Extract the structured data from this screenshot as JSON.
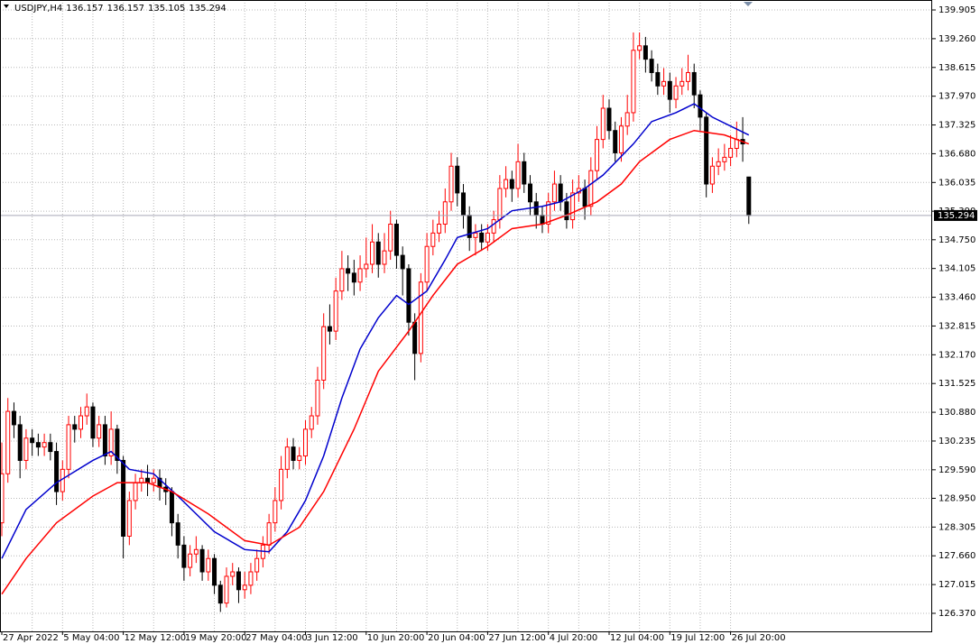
{
  "chart_data": {
    "type": "candlestick",
    "title": "USDJPY,H4",
    "categories": [
      "27 Apr 2022",
      null,
      null,
      null,
      null,
      null,
      null,
      null,
      null,
      null,
      "5 May 04:00",
      null,
      null,
      null,
      null,
      null,
      null,
      null,
      null,
      null,
      "12 May 12:00",
      null,
      null,
      null,
      null,
      null,
      null,
      null,
      null,
      null,
      "19 May 20:00",
      null,
      null,
      null,
      null,
      null,
      null,
      null,
      null,
      null,
      "27 May 04:00",
      null,
      null,
      null,
      null,
      null,
      null,
      null,
      null,
      null,
      "3 Jun 12:00",
      null,
      null,
      null,
      null,
      null,
      null,
      null,
      null,
      null,
      "10 Jun 20:00",
      null,
      null,
      null,
      null,
      null,
      null,
      null,
      null,
      null,
      "20 Jun 04:00",
      null,
      null,
      null,
      null,
      null,
      null,
      null,
      null,
      null,
      "27 Jun 12:00",
      null,
      null,
      null,
      null,
      null,
      null,
      null,
      null,
      null,
      "4 Jul 20:00",
      null,
      null,
      null,
      null,
      null,
      null,
      null,
      null,
      null,
      "12 Jul 04:00",
      null,
      null,
      null,
      null,
      null,
      null,
      null,
      null,
      null,
      "19 Jul 12:00",
      null,
      null,
      null,
      null,
      null,
      null,
      null,
      null,
      null,
      "26 Jul 20:00",
      null,
      null,
      null
    ],
    "candles": {
      "up_color": "#ff0000",
      "down_color": "#000000",
      "open": [
        128.4,
        129.5,
        130.9,
        130.6,
        129.8,
        130.3,
        130.2,
        130.1,
        130.2,
        130.0,
        129.1,
        129.6,
        130.6,
        130.5,
        130.8,
        131.0,
        130.3,
        130.6,
        129.9,
        130.5,
        129.8,
        128.1,
        128.9,
        129.3,
        129.4,
        129.3,
        129.4,
        129.2,
        129.1,
        128.4,
        127.9,
        127.4,
        127.7,
        127.8,
        127.3,
        127.6,
        127.0,
        126.6,
        127.2,
        127.3,
        126.9,
        127.0,
        127.3,
        127.6,
        127.9,
        128.4,
        128.9,
        129.6,
        130.1,
        129.8,
        129.9,
        130.5,
        130.8,
        131.6,
        132.8,
        132.7,
        133.6,
        134.1,
        134.0,
        133.8,
        134.1,
        134.2,
        134.7,
        134.2,
        134.5,
        135.1,
        134.4,
        134.1,
        132.9,
        132.2,
        133.8,
        134.6,
        134.9,
        135.1,
        135.6,
        136.4,
        135.8,
        135.3,
        134.8,
        134.9,
        134.7,
        134.9,
        135.2,
        135.9,
        136.1,
        135.9,
        136.5,
        136.0,
        135.6,
        135.3,
        135.1,
        135.6,
        136.0,
        135.6,
        135.2,
        135.8,
        135.9,
        135.5,
        136.3,
        137.0,
        137.7,
        137.2,
        136.7,
        137.3,
        137.6,
        139.0,
        139.1,
        138.8,
        138.5,
        138.2,
        138.3,
        137.9,
        138.2,
        138.3,
        138.5,
        138.0,
        137.5,
        136.0,
        136.4,
        136.5,
        136.6,
        136.8,
        137.0,
        136.157
      ],
      "high": [
        130.2,
        131.2,
        131.1,
        130.8,
        130.5,
        130.5,
        130.4,
        130.4,
        130.4,
        130.2,
        129.8,
        130.8,
        130.8,
        131.0,
        131.3,
        131.1,
        130.8,
        130.8,
        130.9,
        130.6,
        129.9,
        129.1,
        129.5,
        129.6,
        129.7,
        129.6,
        129.6,
        129.4,
        129.2,
        128.6,
        128.1,
        127.9,
        128.1,
        127.9,
        127.8,
        127.7,
        127.1,
        127.4,
        127.5,
        127.4,
        127.3,
        127.5,
        127.8,
        128.1,
        128.6,
        129.2,
        129.9,
        130.3,
        130.3,
        130.1,
        130.7,
        131.0,
        131.9,
        133.1,
        133.3,
        133.9,
        134.5,
        134.4,
        134.3,
        134.4,
        134.8,
        135.1,
        134.9,
        134.9,
        135.4,
        135.2,
        134.6,
        134.2,
        133.1,
        134.0,
        134.9,
        135.2,
        135.4,
        135.9,
        136.7,
        136.6,
        136.0,
        135.5,
        135.1,
        135.1,
        135.1,
        135.4,
        136.2,
        136.4,
        136.3,
        136.9,
        136.7,
        136.2,
        135.8,
        135.5,
        135.8,
        136.3,
        136.2,
        135.8,
        136.1,
        136.2,
        136.1,
        136.6,
        137.3,
        138.0,
        137.9,
        137.4,
        137.5,
        138.0,
        139.4,
        139.4,
        139.3,
        139.0,
        138.7,
        138.6,
        138.5,
        138.4,
        138.6,
        138.9,
        138.7,
        138.1,
        137.6,
        136.6,
        136.8,
        136.9,
        137.1,
        137.4,
        137.5,
        136.157
      ],
      "low": [
        128.1,
        129.3,
        130.3,
        129.4,
        129.6,
        129.9,
        129.9,
        129.9,
        129.8,
        128.8,
        128.9,
        129.4,
        130.2,
        130.3,
        130.6,
        130.1,
        130.1,
        129.7,
        129.7,
        129.5,
        127.6,
        127.9,
        128.7,
        129.1,
        129.0,
        129.1,
        128.9,
        128.8,
        128.1,
        127.6,
        127.1,
        127.2,
        127.5,
        127.1,
        127.1,
        126.8,
        126.4,
        126.5,
        127.0,
        126.6,
        126.7,
        126.8,
        127.1,
        127.4,
        127.7,
        128.2,
        128.7,
        129.4,
        129.6,
        129.6,
        129.7,
        130.3,
        130.6,
        131.4,
        132.4,
        132.5,
        133.4,
        133.6,
        133.5,
        133.6,
        133.9,
        134.0,
        133.9,
        134.0,
        134.3,
        134.1,
        133.5,
        132.6,
        131.6,
        132.0,
        133.6,
        134.4,
        134.7,
        134.9,
        135.4,
        135.5,
        135.0,
        134.5,
        134.4,
        134.5,
        134.5,
        134.7,
        135.0,
        135.7,
        135.6,
        135.7,
        135.8,
        135.3,
        135.0,
        134.9,
        134.9,
        135.4,
        135.4,
        135.0,
        135.0,
        135.6,
        135.2,
        135.3,
        136.1,
        136.8,
        137.0,
        136.5,
        136.5,
        137.1,
        137.4,
        138.8,
        138.5,
        138.3,
        138.0,
        138.0,
        137.6,
        137.7,
        138.0,
        138.1,
        137.7,
        137.2,
        135.7,
        135.8,
        136.2,
        136.3,
        136.4,
        136.6,
        136.5,
        135.105
      ],
      "close": [
        129.5,
        130.9,
        130.6,
        129.8,
        130.3,
        130.2,
        130.1,
        130.2,
        130.0,
        129.1,
        129.6,
        130.6,
        130.5,
        130.8,
        131.0,
        130.3,
        130.6,
        129.9,
        130.5,
        129.8,
        128.1,
        128.9,
        129.3,
        129.4,
        129.3,
        129.4,
        129.2,
        129.1,
        128.4,
        127.9,
        127.4,
        127.7,
        127.8,
        127.3,
        127.6,
        127.0,
        126.6,
        127.2,
        127.3,
        126.9,
        127.0,
        127.3,
        127.6,
        127.9,
        128.4,
        128.9,
        129.6,
        130.1,
        129.8,
        129.9,
        130.5,
        130.8,
        131.6,
        132.8,
        132.7,
        133.6,
        134.1,
        134.0,
        133.8,
        134.1,
        134.2,
        134.7,
        134.2,
        134.5,
        135.1,
        134.4,
        134.1,
        132.9,
        132.2,
        133.8,
        134.6,
        134.9,
        135.1,
        135.6,
        136.4,
        135.8,
        135.3,
        134.8,
        134.9,
        134.7,
        134.9,
        135.2,
        135.9,
        136.1,
        135.9,
        136.5,
        136.0,
        135.6,
        135.3,
        135.1,
        135.6,
        136.0,
        135.6,
        135.2,
        135.8,
        135.9,
        135.5,
        136.3,
        137.0,
        137.7,
        137.2,
        136.7,
        137.3,
        137.6,
        139.0,
        139.1,
        138.8,
        138.5,
        138.2,
        138.3,
        137.9,
        138.2,
        138.3,
        138.5,
        138.0,
        137.5,
        136.0,
        136.4,
        136.5,
        136.6,
        136.8,
        137.0,
        136.9,
        135.294
      ]
    },
    "lines": [
      {
        "color": "#0000cd",
        "x": [
          0,
          4,
          9,
          15,
          18,
          21,
          25,
          29,
          35,
          40,
          44,
          47,
          50,
          53,
          56,
          59,
          62,
          65,
          67,
          70,
          73,
          75,
          80,
          84,
          89,
          92,
          96,
          99,
          104,
          107,
          111,
          114,
          117,
          120,
          123
        ],
        "values": [
          127.6,
          128.7,
          129.3,
          129.8,
          130.0,
          129.6,
          129.5,
          129.0,
          128.2,
          127.8,
          127.75,
          128.2,
          128.9,
          129.9,
          131.2,
          132.3,
          133.0,
          133.5,
          133.3,
          133.6,
          134.3,
          134.8,
          135.0,
          135.4,
          135.5,
          135.6,
          135.9,
          136.2,
          136.9,
          137.4,
          137.6,
          137.8,
          137.5,
          137.3,
          137.1
        ]
      },
      {
        "color": "#ff0000",
        "x": [
          0,
          4,
          9,
          15,
          19,
          24,
          28,
          34,
          40,
          44,
          49,
          53,
          58,
          62,
          67,
          71,
          75,
          80,
          84,
          89,
          93,
          98,
          102,
          105,
          110,
          114,
          119,
          123
        ],
        "values": [
          126.8,
          127.6,
          128.4,
          129.0,
          129.3,
          129.3,
          129.1,
          128.6,
          128.0,
          127.9,
          128.3,
          129.1,
          130.5,
          131.8,
          132.7,
          133.5,
          134.2,
          134.6,
          135.0,
          135.1,
          135.3,
          135.6,
          136.0,
          136.5,
          137.0,
          137.2,
          137.1,
          136.9
        ]
      }
    ],
    "ylim": [
      125.965,
      140.128
    ],
    "yticks": [
      139.905,
      {
        "value": 139.26,
        "label": "139.260"
      },
      138.615,
      {
        "value": 137.97,
        "label": "137.970"
      },
      137.325,
      {
        "value": 136.68,
        "label": "136.680"
      },
      136.035,
      {
        "value": 135.39,
        "label": "135.390"
      },
      {
        "value": 134.75,
        "label": "134.750"
      },
      134.105,
      {
        "value": 133.46,
        "label": "133.460"
      },
      132.815,
      {
        "value": 132.17,
        "label": "132.170"
      },
      131.525,
      {
        "value": 130.88,
        "label": "130.880"
      },
      130.235,
      {
        "value": 129.59,
        "label": "129.590"
      },
      {
        "value": 128.95,
        "label": "128.950"
      },
      128.305,
      {
        "value": 127.66,
        "label": "127.660"
      },
      127.015,
      {
        "value": 126.37,
        "label": "126.370"
      }
    ],
    "grid": true
  }
}
